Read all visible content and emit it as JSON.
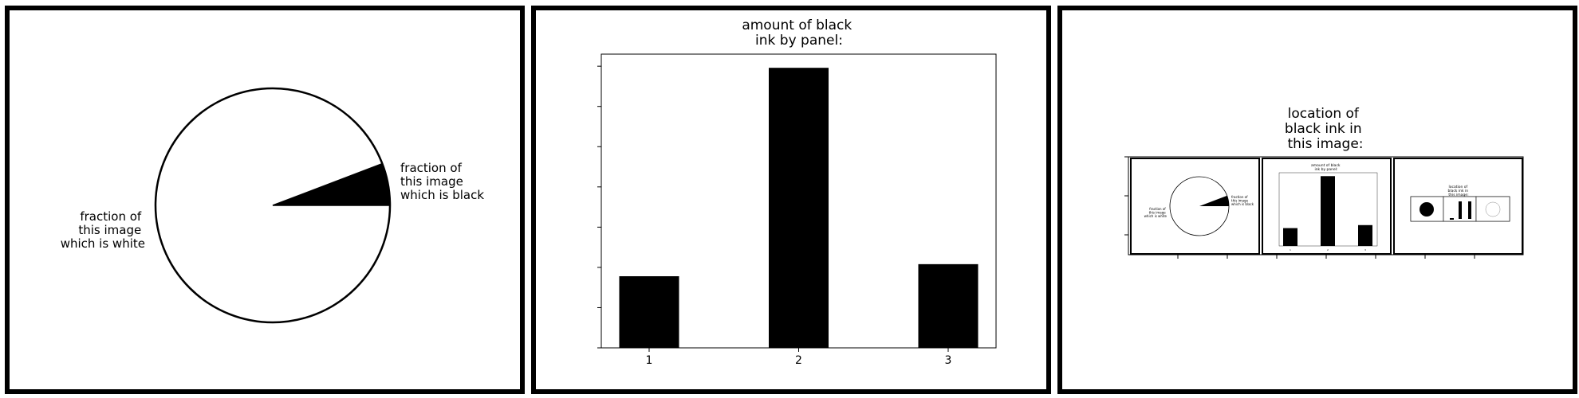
{
  "chart_data": [
    {
      "type": "pie",
      "slices": [
        {
          "label": "fraction of this image which is black",
          "value": 0.058,
          "color": "#000000"
        },
        {
          "label": "fraction of this image which is white",
          "value": 0.942,
          "color": "#ffffff"
        }
      ],
      "label_lines": [
        [
          "fraction of",
          "this image",
          "which is black"
        ],
        [
          "fraction of",
          "this image",
          "which is white"
        ]
      ]
    },
    {
      "type": "bar",
      "title_lines": [
        "amount of black",
        "ink by panel:"
      ],
      "categories": [
        "1",
        "2",
        "3"
      ],
      "values": [
        1.78,
        6.96,
        2.08
      ],
      "ylim": [
        0,
        7.3
      ],
      "bar_color": "#000000"
    },
    {
      "type": "table",
      "title_lines": [
        "location of",
        "black ink in",
        "this image:"
      ],
      "description_of_content": "miniature copy of the whole image",
      "mini_panel_1_labels": {
        "black": [
          "fraction of",
          "this image",
          "which is black"
        ],
        "white": [
          "fraction of",
          "this image",
          "which is white"
        ]
      },
      "mini_panel_2_title": [
        "amount of black",
        "ink by panel:"
      ],
      "mini_panel_2_ticks": [
        "1",
        "2",
        "3"
      ],
      "mini_panel_3_title": [
        "location of",
        "black ink in",
        "this image:"
      ]
    }
  ]
}
